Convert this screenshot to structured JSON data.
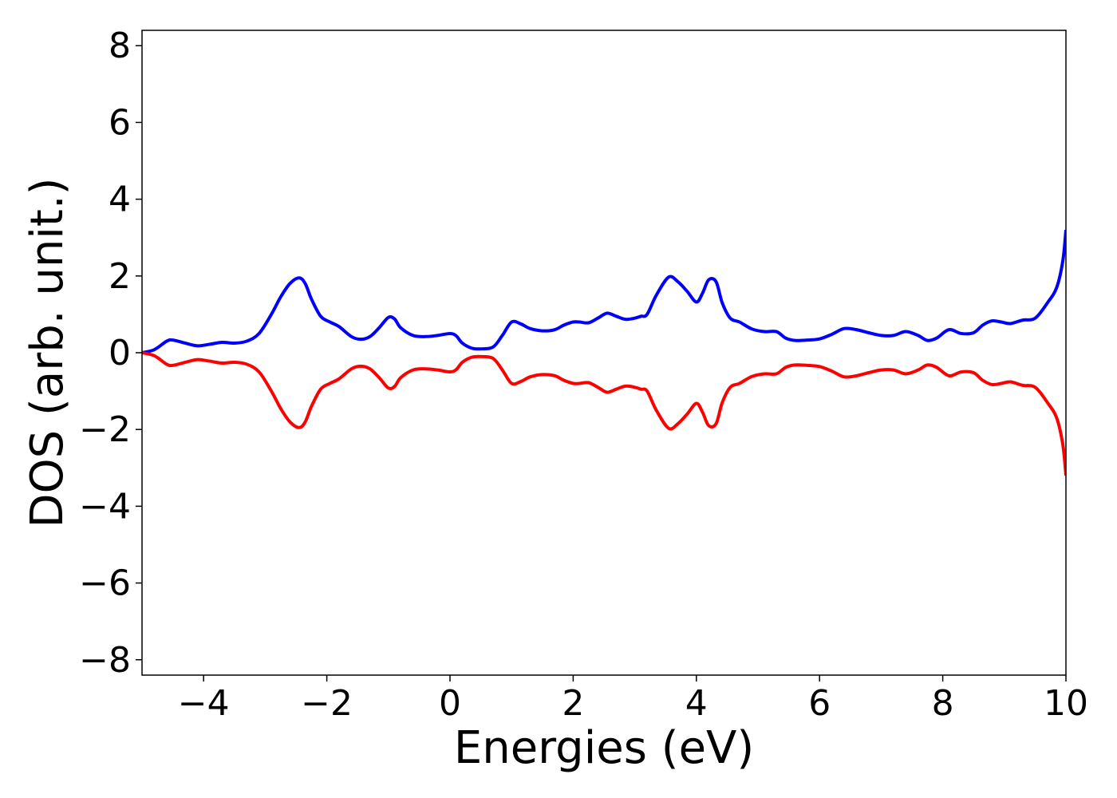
{
  "chart_data": {
    "type": "line",
    "title": "",
    "xlabel": "Energies (eV)",
    "ylabel": "DOS (arb. unit.)",
    "xlim": [
      -5,
      10
    ],
    "ylim": [
      -8.4,
      8.4
    ],
    "xticks": [
      -4,
      -2,
      0,
      2,
      4,
      6,
      8,
      10
    ],
    "xtick_labels": [
      "−4",
      "−2",
      "0",
      "2",
      "4",
      "6",
      "8",
      "10"
    ],
    "yticks": [
      8,
      6,
      4,
      2,
      0,
      -2,
      -4,
      -6,
      -8
    ],
    "ytick_labels": [
      "8",
      "6",
      "4",
      "2",
      "0",
      "−2",
      "−4",
      "−6",
      "−8"
    ],
    "grid": false,
    "legend": "none",
    "series": [
      {
        "color": "#0000ff",
        "x": [
          -5.0,
          -4.8,
          -4.6,
          -4.5,
          -4.3,
          -4.1,
          -3.9,
          -3.7,
          -3.5,
          -3.3,
          -3.1,
          -2.9,
          -2.75,
          -2.6,
          -2.45,
          -2.35,
          -2.25,
          -2.1,
          -1.95,
          -1.8,
          -1.6,
          -1.45,
          -1.3,
          -1.15,
          -1.0,
          -0.9,
          -0.8,
          -0.6,
          -0.4,
          -0.2,
          0.0,
          0.1,
          0.2,
          0.35,
          0.5,
          0.7,
          0.85,
          1.0,
          1.15,
          1.3,
          1.5,
          1.7,
          1.85,
          2.0,
          2.1,
          2.25,
          2.4,
          2.55,
          2.7,
          2.85,
          3.0,
          3.1,
          3.2,
          3.35,
          3.55,
          3.7,
          3.85,
          4.0,
          4.1,
          4.2,
          4.32,
          4.42,
          4.55,
          4.7,
          4.9,
          5.1,
          5.3,
          5.45,
          5.6,
          5.8,
          6.0,
          6.2,
          6.4,
          6.6,
          6.8,
          7.0,
          7.2,
          7.4,
          7.6,
          7.75,
          7.9,
          8.1,
          8.3,
          8.5,
          8.65,
          8.8,
          8.95,
          9.1,
          9.3,
          9.5,
          9.7,
          9.85,
          9.95,
          10.0
        ],
        "y": [
          0.0,
          0.08,
          0.3,
          0.33,
          0.25,
          0.18,
          0.22,
          0.27,
          0.25,
          0.3,
          0.5,
          1.0,
          1.45,
          1.8,
          1.95,
          1.8,
          1.4,
          0.95,
          0.8,
          0.68,
          0.42,
          0.35,
          0.42,
          0.65,
          0.92,
          0.88,
          0.65,
          0.45,
          0.42,
          0.45,
          0.5,
          0.44,
          0.25,
          0.12,
          0.1,
          0.15,
          0.45,
          0.8,
          0.75,
          0.63,
          0.57,
          0.6,
          0.72,
          0.8,
          0.8,
          0.78,
          0.9,
          1.03,
          0.95,
          0.87,
          0.9,
          0.95,
          1.0,
          1.5,
          1.97,
          1.85,
          1.6,
          1.32,
          1.55,
          1.9,
          1.85,
          1.3,
          0.9,
          0.8,
          0.62,
          0.55,
          0.55,
          0.38,
          0.32,
          0.33,
          0.36,
          0.48,
          0.63,
          0.6,
          0.52,
          0.45,
          0.45,
          0.55,
          0.45,
          0.32,
          0.38,
          0.6,
          0.5,
          0.52,
          0.72,
          0.83,
          0.8,
          0.76,
          0.85,
          0.9,
          1.3,
          1.7,
          2.4,
          3.2
        ]
      },
      {
        "color": "#ff0000",
        "x": [
          -5.0,
          -4.8,
          -4.6,
          -4.5,
          -4.3,
          -4.1,
          -3.9,
          -3.7,
          -3.5,
          -3.3,
          -3.1,
          -2.9,
          -2.75,
          -2.6,
          -2.45,
          -2.35,
          -2.25,
          -2.1,
          -1.95,
          -1.8,
          -1.6,
          -1.45,
          -1.3,
          -1.15,
          -1.0,
          -0.9,
          -0.8,
          -0.6,
          -0.4,
          -0.2,
          0.0,
          0.1,
          0.2,
          0.35,
          0.5,
          0.7,
          0.85,
          1.0,
          1.15,
          1.3,
          1.5,
          1.7,
          1.85,
          2.0,
          2.1,
          2.25,
          2.4,
          2.55,
          2.7,
          2.85,
          3.0,
          3.1,
          3.2,
          3.35,
          3.55,
          3.7,
          3.85,
          4.0,
          4.1,
          4.2,
          4.32,
          4.42,
          4.55,
          4.7,
          4.9,
          5.1,
          5.3,
          5.45,
          5.6,
          5.8,
          6.0,
          6.2,
          6.4,
          6.6,
          6.8,
          7.0,
          7.2,
          7.4,
          7.6,
          7.75,
          7.9,
          8.1,
          8.3,
          8.5,
          8.65,
          8.8,
          8.95,
          9.1,
          9.3,
          9.5,
          9.7,
          9.85,
          9.95,
          10.0
        ],
        "y": [
          0.0,
          -0.08,
          -0.3,
          -0.33,
          -0.25,
          -0.18,
          -0.22,
          -0.27,
          -0.25,
          -0.3,
          -0.5,
          -1.0,
          -1.45,
          -1.8,
          -1.95,
          -1.8,
          -1.4,
          -0.95,
          -0.8,
          -0.68,
          -0.42,
          -0.35,
          -0.42,
          -0.65,
          -0.92,
          -0.88,
          -0.65,
          -0.45,
          -0.42,
          -0.45,
          -0.5,
          -0.44,
          -0.25,
          -0.12,
          -0.1,
          -0.15,
          -0.45,
          -0.8,
          -0.75,
          -0.63,
          -0.57,
          -0.6,
          -0.72,
          -0.8,
          -0.8,
          -0.78,
          -0.9,
          -1.03,
          -0.95,
          -0.87,
          -0.9,
          -0.95,
          -1.0,
          -1.5,
          -1.97,
          -1.85,
          -1.6,
          -1.32,
          -1.55,
          -1.9,
          -1.85,
          -1.3,
          -0.9,
          -0.8,
          -0.62,
          -0.55,
          -0.55,
          -0.38,
          -0.32,
          -0.33,
          -0.36,
          -0.48,
          -0.63,
          -0.6,
          -0.52,
          -0.45,
          -0.45,
          -0.55,
          -0.45,
          -0.32,
          -0.38,
          -0.6,
          -0.5,
          -0.52,
          -0.72,
          -0.83,
          -0.8,
          -0.76,
          -0.85,
          -0.9,
          -1.3,
          -1.7,
          -2.4,
          -3.2
        ]
      }
    ]
  }
}
